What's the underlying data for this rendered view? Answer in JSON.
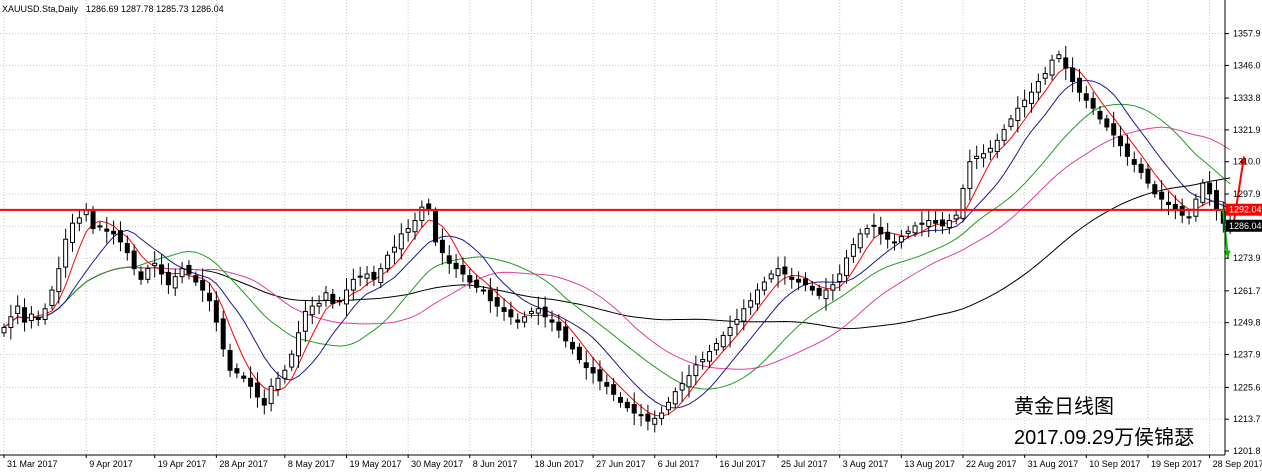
{
  "header": {
    "symbol": "XAUUSD.Sta,Daily",
    "ohlc": "1286.69 1287.78 1285.73 1286.04"
  },
  "annotation": {
    "line1": "黄金日线图",
    "line2": "2017.09.29万侯锦瑟"
  },
  "colors": {
    "background": "#ffffff",
    "grid": "#c8c8c8",
    "bull_body": "#ffffff",
    "bear_body": "#000000",
    "candle_outline": "#000000",
    "level_line": "#ff0000",
    "ma5": "#ff0000",
    "ma10": "#1a1a8c",
    "ma20": "#1e9e1e",
    "ma30": "#e040a0",
    "ma60": "#000000",
    "arrow_up": "#ff0000",
    "arrow_down": "#00c000"
  },
  "chart_data": {
    "type": "candlestick",
    "title": "",
    "xlabel": "",
    "ylabel": "",
    "grid": true,
    "ylim": [
      1201.8,
      1363.0
    ],
    "y_ticks": [
      1357.9,
      1346.0,
      1333.8,
      1321.9,
      1310.0,
      1297.9,
      1285.8,
      1273.9,
      1261.7,
      1249.8,
      1237.9,
      1225.6,
      1213.7,
      1201.8
    ],
    "x_ticks": [
      "31 Mar 2017",
      "9 Apr 2017",
      "19 Apr 2017",
      "28 Apr 2017",
      "8 May 2017",
      "19 May 2017",
      "30 May 2017",
      "8 Jun 2017",
      "18 Jun 2017",
      "27 Jun 2017",
      "6 Jul 2017",
      "16 Jul 2017",
      "25 Jul 2017",
      "3 Aug 2017",
      "13 Aug 2017",
      "22 Aug 2017",
      "31 Aug 2017",
      "10 Sep 2017",
      "19 Sep 2017",
      "28 Sep 2017"
    ],
    "x_tick_positions": [
      0,
      12,
      22,
      31,
      41,
      50,
      59,
      68,
      77,
      86,
      95,
      104,
      113,
      122,
      131,
      140,
      149,
      158,
      167,
      176
    ],
    "price_labels": [
      {
        "text": "1292.04",
        "value": 1292.04,
        "color": "#ff0000"
      },
      {
        "text": "1286.04",
        "value": 1286.04,
        "color": "#000000"
      }
    ],
    "horizontal_line": 1292.0,
    "close": [
      1248,
      1252,
      1256,
      1250,
      1253,
      1251,
      1255,
      1262,
      1270,
      1281,
      1287,
      1289,
      1292,
      1285,
      1286,
      1284,
      1283,
      1280,
      1276,
      1270,
      1266,
      1270,
      1272,
      1268,
      1264,
      1267,
      1270,
      1268,
      1265,
      1262,
      1258,
      1250,
      1240,
      1232,
      1231,
      1229,
      1226,
      1222,
      1219,
      1226,
      1229,
      1232,
      1238,
      1246,
      1254,
      1256,
      1257,
      1261,
      1257,
      1258,
      1262,
      1266,
      1267,
      1268,
      1266,
      1270,
      1275,
      1278,
      1283,
      1285,
      1288,
      1293,
      1292,
      1280,
      1276,
      1272,
      1270,
      1268,
      1265,
      1263,
      1262,
      1258,
      1256,
      1254,
      1252,
      1250,
      1252,
      1254,
      1255,
      1252,
      1250,
      1247,
      1243,
      1240,
      1236,
      1233,
      1231,
      1228,
      1226,
      1223,
      1220,
      1218,
      1216,
      1215,
      1213,
      1214,
      1216,
      1220,
      1224,
      1227,
      1230,
      1234,
      1236,
      1239,
      1242,
      1245,
      1248,
      1251,
      1255,
      1258,
      1262,
      1265,
      1268,
      1270,
      1268,
      1266,
      1265,
      1264,
      1262,
      1260,
      1262,
      1264,
      1268,
      1274,
      1279,
      1283,
      1285,
      1286,
      1283,
      1281,
      1280,
      1282,
      1284,
      1286,
      1287,
      1288,
      1287,
      1286,
      1288,
      1290,
      1300,
      1310,
      1312,
      1313,
      1315,
      1318,
      1322,
      1326,
      1330,
      1333,
      1336,
      1340,
      1343,
      1348,
      1350,
      1345,
      1340,
      1336,
      1333,
      1330,
      1326,
      1323,
      1320,
      1316,
      1312,
      1309,
      1306,
      1302,
      1298,
      1296,
      1294,
      1292,
      1290,
      1289,
      1296,
      1302,
      1298,
      1292,
      1287,
      1286
    ]
  }
}
